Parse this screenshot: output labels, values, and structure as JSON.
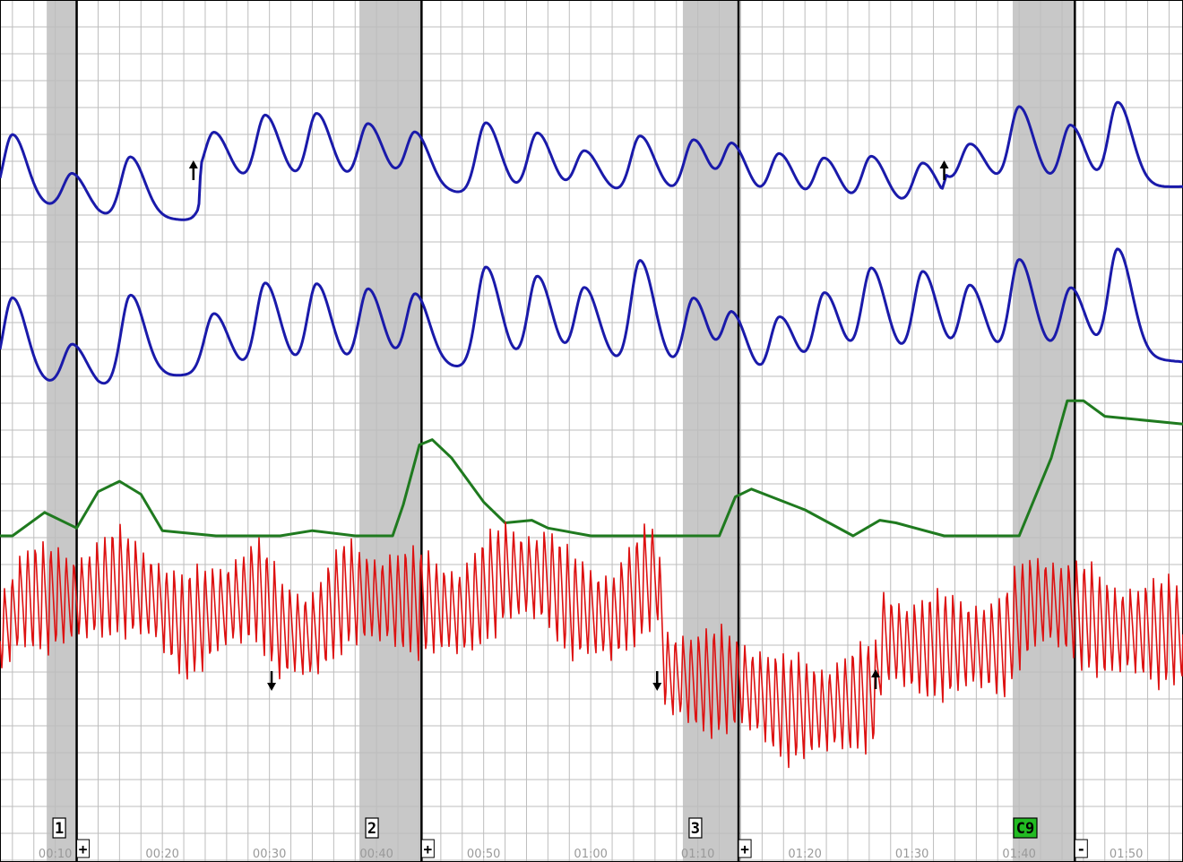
{
  "chart_data": {
    "type": "line",
    "x_unit": "mm:ss",
    "xlim": [
      0,
      115.3
    ],
    "x_ticks": [
      {
        "t": 10,
        "label": "00:10"
      },
      {
        "t": 20,
        "label": "00:20"
      },
      {
        "t": 30,
        "label": "00:30"
      },
      {
        "t": 40,
        "label": "00:40"
      },
      {
        "t": 50,
        "label": "00:50"
      },
      {
        "t": 60,
        "label": "01:00"
      },
      {
        "t": 70,
        "label": "01:10"
      },
      {
        "t": 80,
        "label": "01:20"
      },
      {
        "t": 90,
        "label": "01:30"
      },
      {
        "t": 100,
        "label": "01:40"
      },
      {
        "t": 110,
        "label": "01:50"
      }
    ],
    "grid": true,
    "colors": {
      "pneumo_upper": "#1a1aaa",
      "pneumo_lower": "#1a1aaa",
      "eda": "#1f7a1f",
      "cardio": "#dd1111",
      "question_band": "#c8c8c8",
      "answer_line": "#000000",
      "grid": "#bdbdbd",
      "c_marker": "#22bb22"
    },
    "questions": [
      {
        "label": "1",
        "start": 9.2,
        "answer": 12.0,
        "answer_mark": "+",
        "highlight": false
      },
      {
        "label": "2",
        "start": 38.4,
        "answer": 44.2,
        "answer_mark": "+",
        "highlight": false
      },
      {
        "label": "3",
        "start": 68.6,
        "answer": 73.8,
        "answer_mark": "+",
        "highlight": false
      },
      {
        "label": "C9",
        "start": 99.4,
        "answer": 105.2,
        "answer_mark": "-",
        "highlight": true
      }
    ],
    "artifact_marks": [
      {
        "t": 22.9,
        "channel": "pneumo_upper",
        "direction": "up"
      },
      {
        "t": 30.2,
        "channel": "cardio",
        "direction": "down"
      },
      {
        "t": 66.2,
        "channel": "cardio",
        "direction": "down"
      },
      {
        "t": 86.6,
        "channel": "cardio",
        "direction": "up"
      },
      {
        "t": 93.0,
        "channel": "pneumo_upper",
        "direction": "up"
      }
    ],
    "series": [
      {
        "key": "pneumo_upper",
        "kind": "wave",
        "peaks": [
          {
            "t": 6.0,
            "v": 8.5
          },
          {
            "t": 11.6,
            "v": 4.5
          },
          {
            "t": 17.0,
            "v": 7.2
          },
          {
            "t": 24.8,
            "v": 6.0
          },
          {
            "t": 29.6,
            "v": 8.0
          },
          {
            "t": 34.4,
            "v": 8.2
          },
          {
            "t": 39.2,
            "v": 7.0
          },
          {
            "t": 43.6,
            "v": 6.4
          },
          {
            "t": 50.2,
            "v": 8.5
          },
          {
            "t": 55.0,
            "v": 7.2
          },
          {
            "t": 59.4,
            "v": 5.0
          },
          {
            "t": 64.6,
            "v": 6.8
          },
          {
            "t": 69.6,
            "v": 6.4
          },
          {
            "t": 73.2,
            "v": 6.2
          },
          {
            "t": 77.6,
            "v": 5.6
          },
          {
            "t": 81.8,
            "v": 5.4
          },
          {
            "t": 86.2,
            "v": 5.8
          },
          {
            "t": 91.0,
            "v": 5.2
          },
          {
            "t": 95.4,
            "v": 5.0
          },
          {
            "t": 100.0,
            "v": 9.0
          },
          {
            "t": 104.8,
            "v": 7.4
          },
          {
            "t": 109.2,
            "v": 10.0
          }
        ],
        "baseline": [
          {
            "t": 0,
            "v": -3.6
          },
          {
            "t": 10,
            "v": -3.9
          },
          {
            "t": 14,
            "v": -5.0
          },
          {
            "t": 20,
            "v": -5.2
          },
          {
            "t": 23.4,
            "v": -5.4
          },
          {
            "t": 23.6,
            "v": -1.0
          },
          {
            "t": 30,
            "v": -1.0
          },
          {
            "t": 42,
            "v": -1.0
          },
          {
            "t": 46,
            "v": -2.0
          },
          {
            "t": 50,
            "v": -2.4
          },
          {
            "t": 60,
            "v": -2.2
          },
          {
            "t": 70,
            "v": -2.3
          },
          {
            "t": 80,
            "v": -3.4
          },
          {
            "t": 90,
            "v": -3.8
          },
          {
            "t": 92.8,
            "v": -3.9
          },
          {
            "t": 93.2,
            "v": -1.6
          },
          {
            "t": 100,
            "v": -1.0
          },
          {
            "t": 105,
            "v": -1.6
          },
          {
            "t": 115.3,
            "v": -1.4
          }
        ]
      },
      {
        "key": "pneumo_lower",
        "kind": "wave",
        "peaks": [
          {
            "t": 6.0,
            "v": 8.0
          },
          {
            "t": 11.6,
            "v": 4.0
          },
          {
            "t": 17.0,
            "v": 8.2
          },
          {
            "t": 24.8,
            "v": 5.5
          },
          {
            "t": 29.6,
            "v": 8.2
          },
          {
            "t": 34.4,
            "v": 8.0
          },
          {
            "t": 39.2,
            "v": 7.4
          },
          {
            "t": 43.6,
            "v": 6.9
          },
          {
            "t": 50.2,
            "v": 9.3
          },
          {
            "t": 55.0,
            "v": 8.3
          },
          {
            "t": 59.4,
            "v": 7.1
          },
          {
            "t": 64.6,
            "v": 10.0
          },
          {
            "t": 69.6,
            "v": 6.9
          },
          {
            "t": 73.2,
            "v": 5.9
          },
          {
            "t": 77.6,
            "v": 5.6
          },
          {
            "t": 81.8,
            "v": 6.9
          },
          {
            "t": 86.2,
            "v": 8.5
          },
          {
            "t": 91.0,
            "v": 8.2
          },
          {
            "t": 95.4,
            "v": 6.9
          },
          {
            "t": 100.0,
            "v": 9.3
          },
          {
            "t": 104.8,
            "v": 6.1
          },
          {
            "t": 109.2,
            "v": 10.0
          }
        ],
        "baseline": [
          {
            "t": 0,
            "v": -4.2
          },
          {
            "t": 10,
            "v": -4.6
          },
          {
            "t": 14,
            "v": -5.0
          },
          {
            "t": 20,
            "v": -3.8
          },
          {
            "t": 25,
            "v": -3.4
          },
          {
            "t": 40,
            "v": -3.0
          },
          {
            "t": 46,
            "v": -3.0
          },
          {
            "t": 60,
            "v": -2.6
          },
          {
            "t": 70,
            "v": -3.4
          },
          {
            "t": 76,
            "v": -4.2
          },
          {
            "t": 85,
            "v": -2.2
          },
          {
            "t": 100,
            "v": -2.2
          },
          {
            "t": 105,
            "v": -1.6
          },
          {
            "t": 115.3,
            "v": -2.4
          }
        ]
      },
      {
        "key": "eda",
        "kind": "line",
        "points": [
          {
            "t": 0,
            "v": 0
          },
          {
            "t": 6,
            "v": 0
          },
          {
            "t": 9,
            "v": 0.9
          },
          {
            "t": 12,
            "v": 0.3
          },
          {
            "t": 14,
            "v": 1.7
          },
          {
            "t": 16,
            "v": 2.1
          },
          {
            "t": 18,
            "v": 1.6
          },
          {
            "t": 20,
            "v": 0.2
          },
          {
            "t": 25,
            "v": 0
          },
          {
            "t": 31,
            "v": 0
          },
          {
            "t": 34,
            "v": 0.2
          },
          {
            "t": 38,
            "v": 0
          },
          {
            "t": 41.5,
            "v": 0
          },
          {
            "t": 42.5,
            "v": 1.2
          },
          {
            "t": 44,
            "v": 3.5
          },
          {
            "t": 45.2,
            "v": 3.7
          },
          {
            "t": 47,
            "v": 3.0
          },
          {
            "t": 50,
            "v": 1.3
          },
          {
            "t": 52,
            "v": 0.5
          },
          {
            "t": 54.5,
            "v": 0.6
          },
          {
            "t": 56,
            "v": 0.3
          },
          {
            "t": 60,
            "v": 0
          },
          {
            "t": 72,
            "v": 0
          },
          {
            "t": 73.5,
            "v": 1.5
          },
          {
            "t": 75,
            "v": 1.8
          },
          {
            "t": 80,
            "v": 1.0
          },
          {
            "t": 84.5,
            "v": 0
          },
          {
            "t": 87,
            "v": 0.6
          },
          {
            "t": 88.5,
            "v": 0.5
          },
          {
            "t": 93,
            "v": 0
          },
          {
            "t": 100,
            "v": 0
          },
          {
            "t": 103,
            "v": 3.0
          },
          {
            "t": 104.5,
            "v": 5.2
          },
          {
            "t": 106,
            "v": 5.2
          },
          {
            "t": 108,
            "v": 4.6
          },
          {
            "t": 115.3,
            "v": 4.3
          }
        ]
      },
      {
        "key": "cardio",
        "kind": "oscillation",
        "amplitude": 5.5,
        "period_s": 0.72,
        "midline": [
          {
            "t": 0,
            "v": -3.5
          },
          {
            "t": 5,
            "v": -3.7
          },
          {
            "t": 7,
            "v": -0.7
          },
          {
            "t": 12,
            "v": -0.7
          },
          {
            "t": 16,
            "v": 0.9
          },
          {
            "t": 19,
            "v": -0.5
          },
          {
            "t": 22,
            "v": -3.5
          },
          {
            "t": 26,
            "v": -1.3
          },
          {
            "t": 29,
            "v": 0
          },
          {
            "t": 31,
            "v": -3.5
          },
          {
            "t": 34,
            "v": -4.2
          },
          {
            "t": 37,
            "v": -0.3
          },
          {
            "t": 40,
            "v": -0.7
          },
          {
            "t": 44,
            "v": -1.1
          },
          {
            "t": 48,
            "v": -2.0
          },
          {
            "t": 52,
            "v": 1.7
          },
          {
            "t": 56,
            "v": 1.2
          },
          {
            "t": 58,
            "v": -1.3
          },
          {
            "t": 62,
            "v": -2.5
          },
          {
            "t": 65,
            "v": 0.8
          },
          {
            "t": 66.2,
            "v": 1.7
          },
          {
            "t": 67.0,
            "v": -7.5
          },
          {
            "t": 70,
            "v": -8.5
          },
          {
            "t": 74,
            "v": -8.5
          },
          {
            "t": 78,
            "v": -11.0
          },
          {
            "t": 82,
            "v": -11.0
          },
          {
            "t": 86.7,
            "v": -9.5
          },
          {
            "t": 87.2,
            "v": -4.2
          },
          {
            "t": 90,
            "v": -5.3
          },
          {
            "t": 95,
            "v": -5.0
          },
          {
            "t": 98.5,
            "v": -5.3
          },
          {
            "t": 100,
            "v": -2.3
          },
          {
            "t": 102,
            "v": -0.7
          },
          {
            "t": 105,
            "v": -1.8
          },
          {
            "t": 108,
            "v": -3.5
          },
          {
            "t": 115.3,
            "v": -4.0
          }
        ]
      }
    ]
  }
}
